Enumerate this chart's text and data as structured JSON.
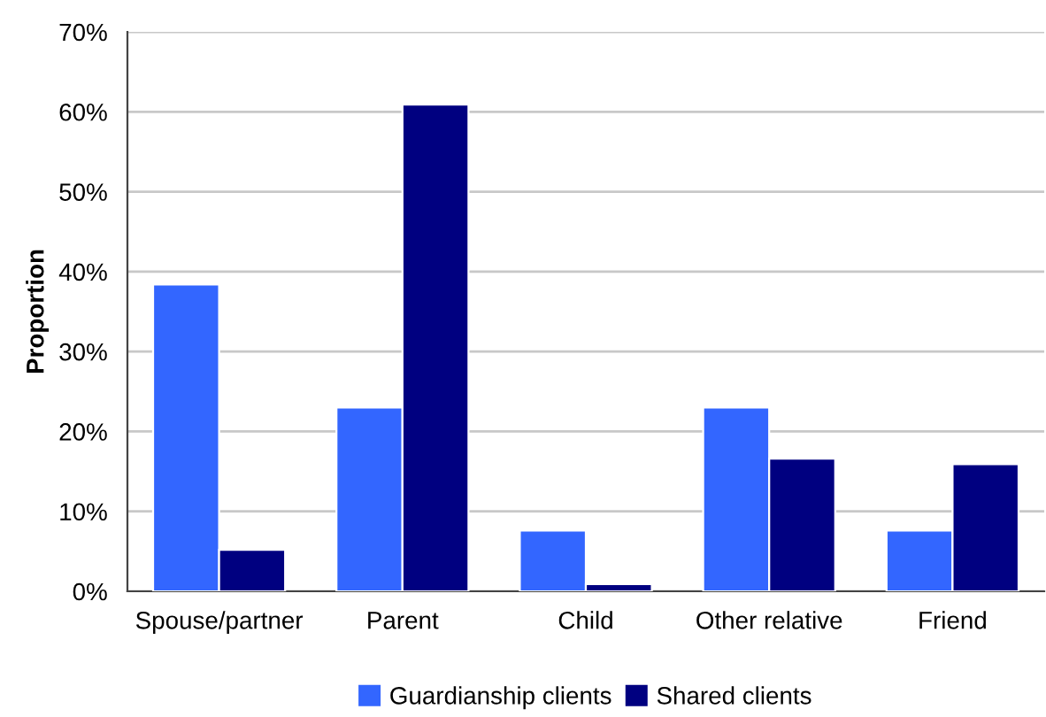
{
  "chart_data": {
    "type": "bar",
    "ylabel": "Proportion",
    "categories": [
      "Spouse/partner",
      "Parent",
      "Child",
      "Other relative",
      "Friend"
    ],
    "series": [
      {
        "name": "Guardianship clients",
        "color": "#3366ff",
        "values": [
          38.4,
          23.0,
          7.6,
          23.0,
          7.6
        ]
      },
      {
        "name": "Shared clients",
        "color": "#000080",
        "values": [
          5.2,
          60.9,
          0.9,
          16.6,
          15.9
        ]
      }
    ],
    "ylim": [
      0,
      70
    ],
    "yticks": [
      {
        "value": 0,
        "label": "0%"
      },
      {
        "value": 10,
        "label": "10%"
      },
      {
        "value": 20,
        "label": "20%"
      },
      {
        "value": 30,
        "label": "30%"
      },
      {
        "value": 40,
        "label": "40%"
      },
      {
        "value": 50,
        "label": "50%"
      },
      {
        "value": 60,
        "label": "60%"
      },
      {
        "value": 70,
        "label": "70%"
      }
    ],
    "grid": "y",
    "legend": "bottom"
  }
}
